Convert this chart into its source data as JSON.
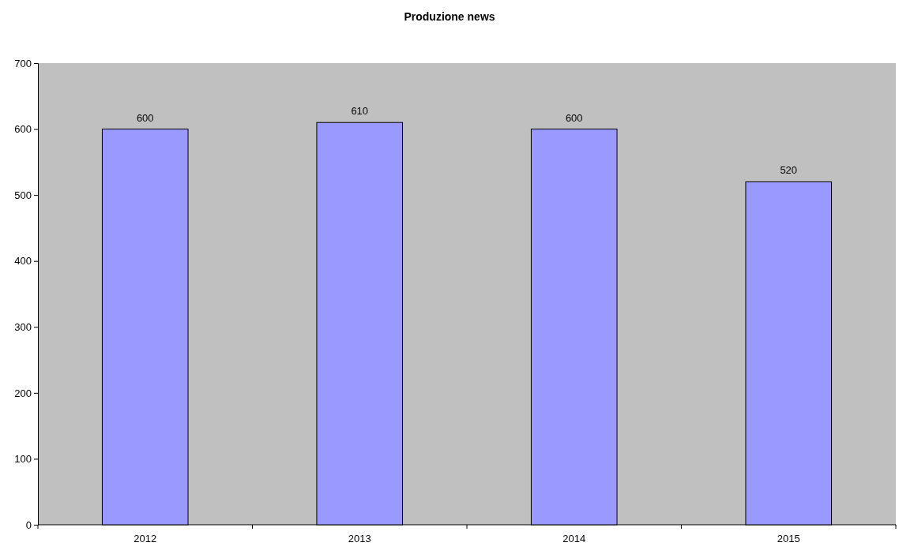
{
  "chart_data": {
    "type": "bar",
    "title": "Produzione news",
    "categories": [
      "2012",
      "2013",
      "2014",
      "2015"
    ],
    "values": [
      600,
      610,
      600,
      520
    ],
    "color": "#9999ff",
    "ylim": [
      0,
      700
    ],
    "yticks": [
      0,
      100,
      200,
      300,
      400,
      500,
      600,
      700
    ],
    "data_labels": true
  }
}
